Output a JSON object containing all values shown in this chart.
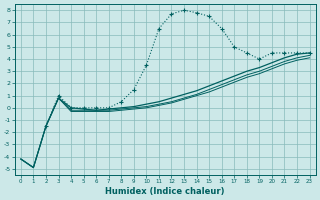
{
  "xlabel": "Humidex (Indice chaleur)",
  "bg_color": "#cce8e8",
  "grid_color": "#88bbbb",
  "line_color": "#006060",
  "xlim": [
    -0.5,
    23.5
  ],
  "ylim": [
    -5.5,
    8.5
  ],
  "xticks": [
    0,
    1,
    2,
    3,
    4,
    5,
    6,
    7,
    8,
    9,
    10,
    11,
    12,
    13,
    14,
    15,
    16,
    17,
    18,
    19,
    20,
    21,
    22,
    23
  ],
  "yticks": [
    -5,
    -4,
    -3,
    -2,
    -1,
    0,
    1,
    2,
    3,
    4,
    5,
    6,
    7,
    8
  ],
  "peak_x": [
    2,
    3,
    4,
    5,
    6,
    7,
    8,
    9,
    10,
    11,
    12,
    13,
    14,
    15,
    16,
    17,
    18,
    19,
    20,
    21,
    22,
    23
  ],
  "peak_y": [
    -1.5,
    1.0,
    0.0,
    0.0,
    0.0,
    0.0,
    0.5,
    1.5,
    3.5,
    6.5,
    7.7,
    8.0,
    7.8,
    7.5,
    6.5,
    5.0,
    4.5,
    4.0,
    4.5,
    4.5,
    4.5,
    4.5
  ],
  "line1_x": [
    0,
    1,
    2,
    3,
    4,
    5,
    6,
    7,
    8,
    9,
    10,
    11,
    12,
    13,
    14,
    15,
    16,
    17,
    18,
    19,
    20,
    21,
    22,
    23
  ],
  "line1_y": [
    -4.2,
    -4.9,
    -1.5,
    0.8,
    0.0,
    -0.1,
    -0.2,
    -0.1,
    0.0,
    0.1,
    0.3,
    0.5,
    0.8,
    1.1,
    1.4,
    1.8,
    2.2,
    2.6,
    3.0,
    3.3,
    3.7,
    4.1,
    4.4,
    4.5
  ],
  "line2_x": [
    0,
    1,
    2,
    3,
    4,
    5,
    6,
    7,
    8,
    9,
    10,
    11,
    12,
    13,
    14,
    15,
    16,
    17,
    18,
    19,
    20,
    21,
    22,
    23
  ],
  "line2_y": [
    -4.2,
    -4.9,
    -1.5,
    0.8,
    -0.2,
    -0.2,
    -0.2,
    -0.2,
    -0.1,
    0.0,
    0.1,
    0.3,
    0.5,
    0.8,
    1.1,
    1.5,
    1.9,
    2.3,
    2.7,
    3.0,
    3.4,
    3.8,
    4.1,
    4.3
  ],
  "line3_x": [
    0,
    1,
    2,
    3,
    4,
    5,
    6,
    7,
    8,
    9,
    10,
    11,
    12,
    13,
    14,
    15,
    16,
    17,
    18,
    19,
    20,
    21,
    22,
    23
  ],
  "line3_y": [
    -4.2,
    -4.9,
    -1.5,
    0.8,
    -0.3,
    -0.3,
    -0.3,
    -0.3,
    -0.2,
    -0.1,
    0.0,
    0.2,
    0.4,
    0.7,
    1.0,
    1.3,
    1.7,
    2.1,
    2.5,
    2.8,
    3.2,
    3.6,
    3.9,
    4.1
  ]
}
